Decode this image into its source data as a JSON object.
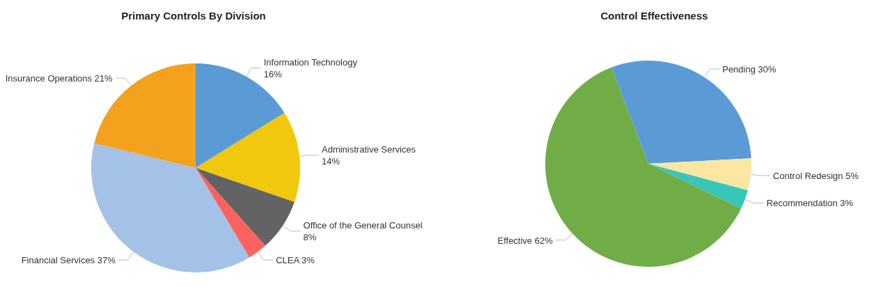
{
  "chart_data": [
    {
      "type": "pie",
      "title": "Primary Controls By Division",
      "categories": [
        "Information Technology",
        "Administrative Services",
        "Office of the General Counsel",
        "CLEA",
        "Financial Services",
        "Insurance Operations"
      ],
      "values": [
        16,
        14,
        8,
        3,
        37,
        21
      ],
      "value_labels": [
        "16%",
        "14%",
        "8%",
        "3%",
        "37%",
        "21%"
      ],
      "colors": [
        "#5b9bd5",
        "#f2c80f",
        "#636363",
        "#fd625e",
        "#a4c2e8",
        "#f4a21e"
      ],
      "legend": false
    },
    {
      "type": "pie",
      "title": "Control Effectiveness",
      "categories": [
        "Pending",
        "Control Redesign",
        "Recommendation",
        "Effective"
      ],
      "values": [
        30,
        5,
        3,
        62
      ],
      "value_labels": [
        "30%",
        "5%",
        "3%",
        "62%"
      ],
      "colors": [
        "#5b9bd5",
        "#fbe7a1",
        "#37c6b8",
        "#70ad47"
      ],
      "legend": false
    }
  ]
}
